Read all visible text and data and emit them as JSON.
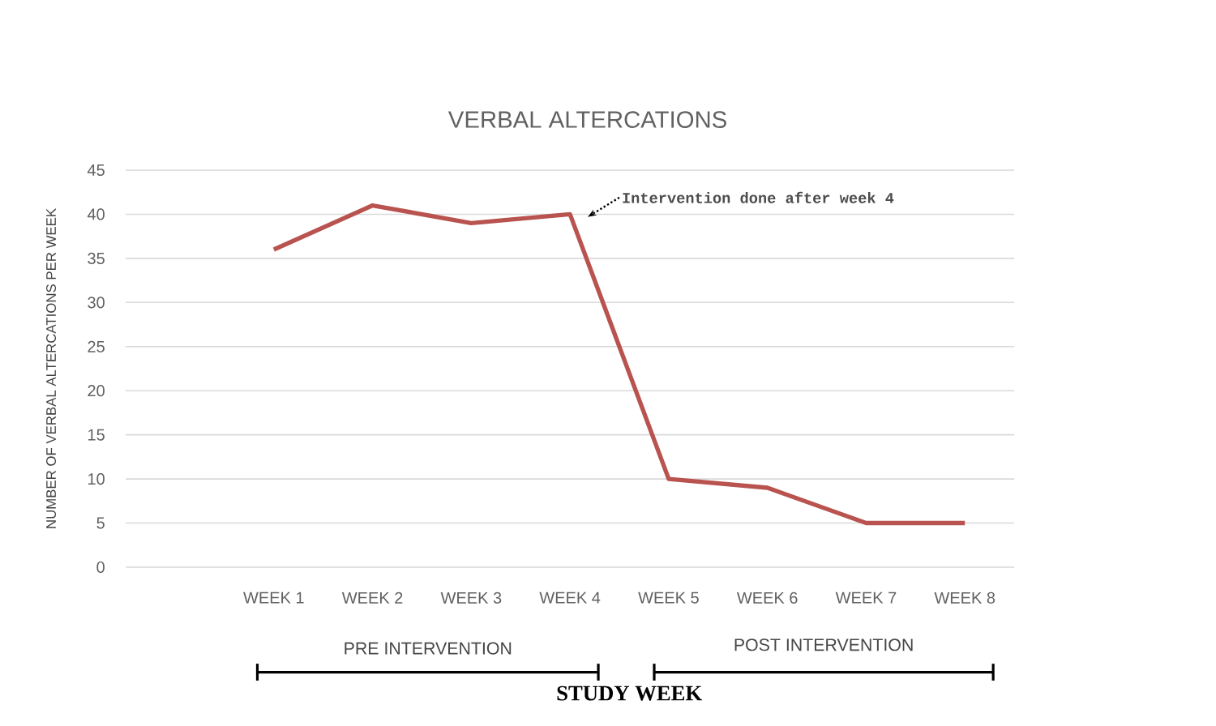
{
  "chart_data": {
    "type": "line",
    "title": "VERBAL ALTERCATIONS",
    "xlabel": "STUDY WEEK",
    "ylabel": "NUMBER OF VERBAL ALTERCATIONS PER WEEK",
    "categories": [
      null,
      "WEEK 1",
      "WEEK 2",
      "WEEK 3",
      "WEEK 4",
      "WEEK 5",
      "WEEK 6",
      "WEEK 7",
      "WEEK 8"
    ],
    "series": [
      {
        "color": "#b9534f",
        "values": [
          null,
          36,
          41,
          39,
          40,
          10,
          9,
          5,
          5
        ]
      }
    ],
    "ylim": [
      0,
      45
    ],
    "yticks": [
      0,
      5,
      10,
      15,
      20,
      25,
      30,
      35,
      40,
      45
    ],
    "grid": "y",
    "marker": "none",
    "line_style": "solid",
    "annotations": [
      "Intervention done after week 4",
      "PRE INTERVENTION",
      "POST INTERVENTION"
    ]
  }
}
